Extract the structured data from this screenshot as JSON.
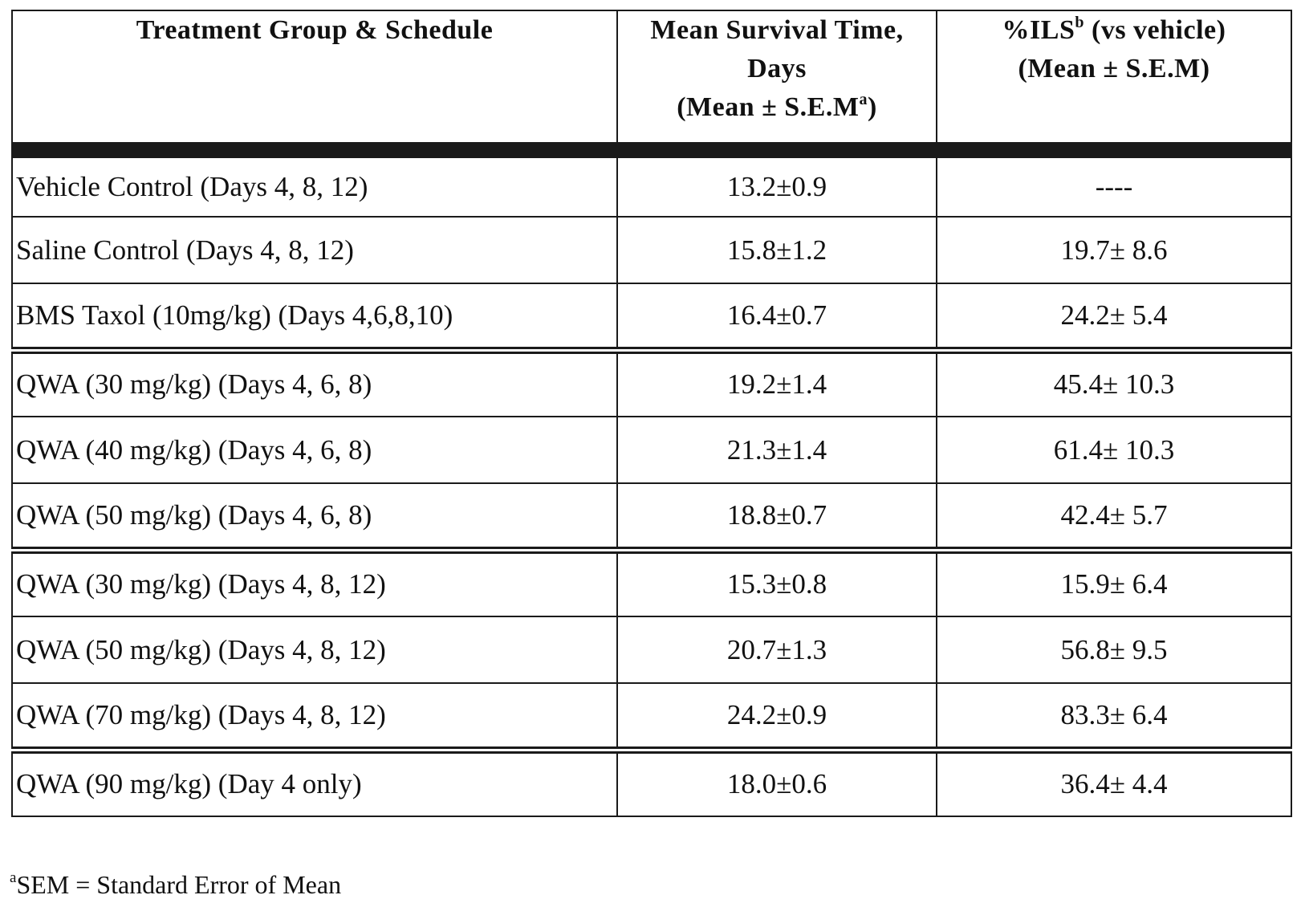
{
  "table": {
    "headers": {
      "treatment": "Treatment Group & Schedule",
      "mean_survival_line1": "Mean Survival Time,",
      "mean_survival_line2": "Days",
      "mean_survival_line3_pre": "(Mean ± S.E.M",
      "mean_survival_line3_sup": "a",
      "mean_survival_line3_post": ")",
      "ils_line1_pre": "%ILS",
      "ils_line1_sup": "b",
      "ils_line1_post": " (vs vehicle)",
      "ils_line2": "(Mean ± S.E.M)"
    },
    "rows": [
      {
        "name": "Vehicle Control (Days 4, 8, 12)",
        "mst": "13.2±0.9",
        "ils": "----"
      },
      {
        "name": "Saline Control (Days 4, 8, 12)",
        "mst": "15.8±1.2",
        "ils": "19.7± 8.6"
      },
      {
        "name": "BMS Taxol (10mg/kg) (Days 4,6,8,10)",
        "mst": "16.4±0.7",
        "ils": "24.2± 5.4"
      },
      {
        "name": "QWA (30 mg/kg) (Days 4, 6, 8)",
        "mst": "19.2±1.4",
        "ils": "45.4± 10.3"
      },
      {
        "name": "QWA (40 mg/kg) (Days 4, 6, 8)",
        "mst": "21.3±1.4",
        "ils": "61.4± 10.3"
      },
      {
        "name": "QWA (50 mg/kg) (Days 4, 6, 8)",
        "mst": "18.8±0.7",
        "ils": "42.4± 5.7"
      },
      {
        "name": "QWA (30 mg/kg) (Days 4, 8, 12)",
        "mst": "15.3±0.8",
        "ils": "15.9± 6.4"
      },
      {
        "name": "QWA (50 mg/kg) (Days 4, 8, 12)",
        "mst": "20.7±1.3",
        "ils": "56.8± 9.5"
      },
      {
        "name": "QWA (70 mg/kg) (Days 4, 8, 12)",
        "mst": "24.2±0.9",
        "ils": "83.3± 6.4"
      },
      {
        "name": "QWA (90 mg/kg) (Day 4 only)",
        "mst": "18.0±0.6",
        "ils": "36.4± 4.4"
      }
    ]
  },
  "footnote": {
    "sup": "a",
    "text": "SEM = Standard Error of Mean"
  }
}
